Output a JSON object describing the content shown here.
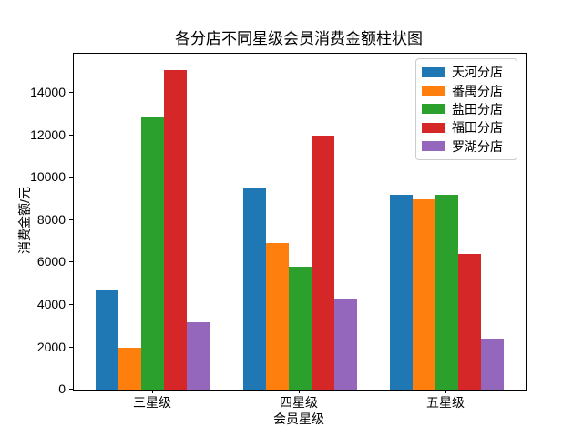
{
  "chart_data": {
    "type": "bar",
    "title": "各分店不同星级会员消费金额柱状图",
    "xlabel": "会员星级",
    "ylabel": "消费金额/元",
    "categories": [
      "三星级",
      "四星级",
      "五星级"
    ],
    "series": [
      {
        "name": "天河分店",
        "color": "#1f77b4",
        "values": [
          4700,
          9500,
          9200
        ]
      },
      {
        "name": "番禺分店",
        "color": "#ff7f0e",
        "values": [
          2000,
          6900,
          9000
        ]
      },
      {
        "name": "盐田分店",
        "color": "#2ca02c",
        "values": [
          12900,
          5800,
          9200
        ]
      },
      {
        "name": "福田分店",
        "color": "#d62728",
        "values": [
          15100,
          12000,
          6400
        ]
      },
      {
        "name": "罗湖分店",
        "color": "#9467bd",
        "values": [
          3200,
          4300,
          2400
        ]
      }
    ],
    "yticks": [
      0,
      2000,
      4000,
      6000,
      8000,
      10000,
      12000,
      14000
    ],
    "ylim": [
      0,
      15855
    ],
    "grid": false,
    "legend_position": "upper right",
    "background_color": "#ffffff",
    "spine_color": "#000000",
    "legend_border_color": "#cccccc"
  }
}
